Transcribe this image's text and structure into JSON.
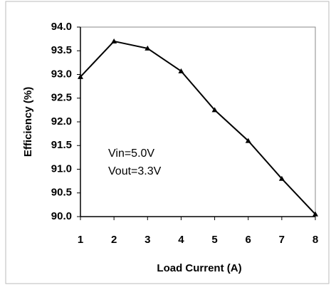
{
  "chart_data": {
    "type": "line",
    "x_label": "Load Current (A)",
    "y_label": "Efficiency (%)",
    "annotations": [
      "Vin=5.0V",
      "Vout=3.3V"
    ],
    "x": [
      1,
      2,
      3,
      4,
      5,
      6,
      7,
      8
    ],
    "series": [
      {
        "name": "Efficiency",
        "color": "#000000",
        "values": [
          92.95,
          93.7,
          93.55,
          93.07,
          92.25,
          91.6,
          90.8,
          90.05
        ]
      }
    ],
    "xlim": [
      1,
      8
    ],
    "xticks": [
      1,
      2,
      3,
      4,
      5,
      6,
      7,
      8
    ],
    "ylim": [
      90,
      94
    ],
    "yticks": [
      {
        "value": 90,
        "label": "90.0"
      },
      {
        "value": 90.5,
        "label": "90.5"
      },
      {
        "value": 91,
        "label": "91.0"
      },
      {
        "value": 91.5,
        "label": "91.5"
      },
      {
        "value": 92,
        "label": "92.0"
      },
      {
        "value": 92.5,
        "label": "92.5"
      },
      {
        "value": 93,
        "label": "93.0"
      },
      {
        "value": 93.5,
        "label": "93.5"
      },
      {
        "value": 94,
        "label": "94.0"
      }
    ],
    "marker": "triangle",
    "grid": false
  }
}
